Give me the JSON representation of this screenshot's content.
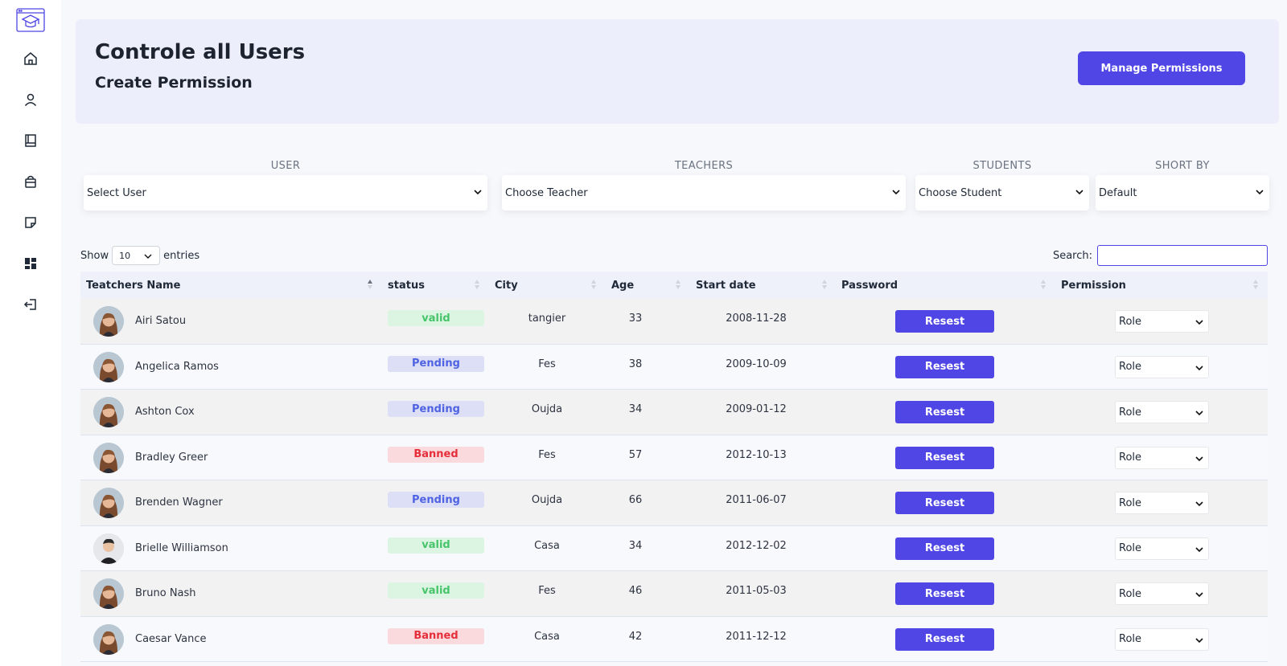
{
  "header": {
    "title": "Controle all Users",
    "subtitle": "Create Permission",
    "manage_button": "Manage Permissions"
  },
  "filters": {
    "user": {
      "label": "USER",
      "value": "Select User"
    },
    "teachers": {
      "label": "TEACHERS",
      "value": "Choose Teacher"
    },
    "students": {
      "label": "STUDENTS",
      "value": "Choose Student"
    },
    "sort": {
      "label": "SHORT BY",
      "value": "Default"
    }
  },
  "table_controls": {
    "show_label": "Show",
    "entries_value": "10",
    "entries_label": "entries",
    "search_label": "Search:",
    "search_value": ""
  },
  "table": {
    "columns": [
      "Teatchers Name",
      "status",
      "City",
      "Age",
      "Start date",
      "Password",
      "Permission"
    ],
    "rows": [
      {
        "name": "Airi Satou",
        "status": "valid",
        "city": "tangier",
        "age": "33",
        "start": "2008-11-28",
        "password_btn": "Resest",
        "permission": "Role",
        "avatar": "woman"
      },
      {
        "name": "Angelica Ramos",
        "status": "Pending",
        "city": "Fes",
        "age": "38",
        "start": "2009-10-09",
        "password_btn": "Resest",
        "permission": "Role",
        "avatar": "woman"
      },
      {
        "name": "Ashton Cox",
        "status": "Pending",
        "city": "Oujda",
        "age": "34",
        "start": "2009-01-12",
        "password_btn": "Resest",
        "permission": "Role",
        "avatar": "woman"
      },
      {
        "name": "Bradley Greer",
        "status": "Banned",
        "city": "Fes",
        "age": "57",
        "start": "2012-10-13",
        "password_btn": "Resest",
        "permission": "Role",
        "avatar": "woman"
      },
      {
        "name": "Brenden Wagner",
        "status": "Pending",
        "city": "Oujda",
        "age": "66",
        "start": "2011-06-07",
        "password_btn": "Resest",
        "permission": "Role",
        "avatar": "woman"
      },
      {
        "name": "Brielle Williamson",
        "status": "valid",
        "city": "Casa",
        "age": "34",
        "start": "2012-12-02",
        "password_btn": "Resest",
        "permission": "Role",
        "avatar": "man"
      },
      {
        "name": "Bruno Nash",
        "status": "valid",
        "city": "Fes",
        "age": "46",
        "start": "2011-05-03",
        "password_btn": "Resest",
        "permission": "Role",
        "avatar": "woman"
      },
      {
        "name": "Caesar Vance",
        "status": "Banned",
        "city": "Casa",
        "age": "42",
        "start": "2011-12-12",
        "password_btn": "Resest",
        "permission": "Role",
        "avatar": "woman"
      }
    ]
  },
  "sidebar": {
    "items": [
      "home-icon",
      "user-icon",
      "book-icon",
      "bag-icon",
      "note-icon",
      "dashboard-icon",
      "logout-icon"
    ]
  },
  "colors": {
    "accent": "#4f46e5",
    "valid_text": "#47c46a",
    "pending_text": "#4f63e2",
    "banned_text": "#e52e3a"
  }
}
